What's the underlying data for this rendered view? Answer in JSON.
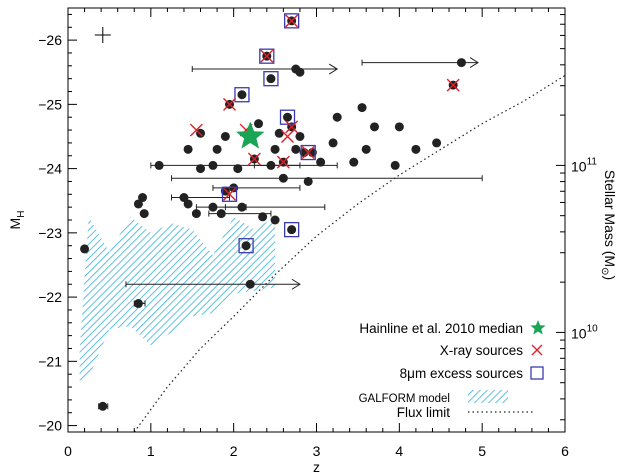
{
  "chart_data": {
    "type": "scatter",
    "title": "",
    "xlabel": "z",
    "ylabel": "M",
    "ylabel_sub": "H",
    "y2label": "Stellar Mass (M",
    "y2label_symbol": "⊙",
    "y2label_end": ")",
    "xlim": [
      0,
      6
    ],
    "ylim": [
      -19.9,
      -26.5
    ],
    "x_ticks": [
      0,
      1,
      2,
      3,
      4,
      5,
      6
    ],
    "x_tick_labels": [
      "0",
      "1",
      "2",
      "3",
      "4",
      "5",
      "6"
    ],
    "y_ticks": [
      -20,
      -21,
      -22,
      -23,
      -24,
      -25,
      -26
    ],
    "y_tick_labels": [
      "−20",
      "−21",
      "−22",
      "−23",
      "−24",
      "−25",
      "−26"
    ],
    "y2_ticks": [
      {
        "mag": -24.05,
        "base": "10",
        "exp": "11"
      },
      {
        "mag": -21.45,
        "base": "10",
        "exp": "10"
      }
    ],
    "grid": false,
    "legend_position": "bottom-right",
    "colors": {
      "points": "#222222",
      "xray": "#e01f28",
      "excess": "#3b3bb0",
      "median": "#1aa456",
      "galform": "#33b2d6",
      "flux": "#222222"
    },
    "error_bar_sample": {
      "x": 0.42,
      "y": -26.08
    },
    "galform_model": {
      "upper": [
        [
          0.14,
          -21.15
        ],
        [
          0.25,
          -23.25
        ],
        [
          0.5,
          -22.7
        ],
        [
          0.75,
          -23.25
        ],
        [
          1.0,
          -23.0
        ],
        [
          1.25,
          -23.15
        ],
        [
          1.5,
          -23.05
        ],
        [
          1.75,
          -22.65
        ],
        [
          2.0,
          -23.25
        ],
        [
          2.25,
          -23.05
        ],
        [
          2.5,
          -23.25
        ]
      ],
      "lower": [
        [
          2.5,
          -22.15
        ],
        [
          2.25,
          -22.1
        ],
        [
          2.0,
          -22.05
        ],
        [
          1.75,
          -21.75
        ],
        [
          1.5,
          -21.7
        ],
        [
          1.25,
          -21.45
        ],
        [
          1.0,
          -21.25
        ],
        [
          0.75,
          -21.55
        ],
        [
          0.5,
          -21.5
        ],
        [
          0.25,
          -20.75
        ],
        [
          0.14,
          -20.7
        ]
      ]
    },
    "flux_limit": [
      [
        0.8,
        -19.9
      ],
      [
        1.2,
        -20.6
      ],
      [
        1.6,
        -21.2
      ],
      [
        2.0,
        -21.7
      ],
      [
        2.5,
        -22.35
      ],
      [
        3.0,
        -22.95
      ],
      [
        3.5,
        -23.45
      ],
      [
        4.0,
        -23.9
      ],
      [
        4.5,
        -24.3
      ],
      [
        5.0,
        -24.7
      ],
      [
        5.5,
        -25.05
      ],
      [
        6.0,
        -25.45
      ]
    ],
    "median": {
      "x": 2.2,
      "y": -24.5
    },
    "points": [
      {
        "x": 0.2,
        "y": -22.75
      },
      {
        "x": 0.42,
        "y": -20.3,
        "xerr": [
          0.05,
          0.06
        ]
      },
      {
        "x": 0.85,
        "y": -21.9,
        "xerr": [
          0.05,
          0.08
        ]
      },
      {
        "x": 0.85,
        "y": -23.45
      },
      {
        "x": 0.9,
        "y": -23.55
      },
      {
        "x": 0.92,
        "y": -23.3
      },
      {
        "x": 1.1,
        "y": -24.05,
        "xerr": [
          0.1,
          1.7
        ]
      },
      {
        "x": 1.4,
        "y": -23.55,
        "xerr": [
          0.15,
          0.55
        ]
      },
      {
        "x": 1.45,
        "y": -23.45
      },
      {
        "x": 1.45,
        "y": -24.3
      },
      {
        "x": 1.55,
        "y": -23.3
      },
      {
        "x": 1.6,
        "y": -24.0
      },
      {
        "x": 1.6,
        "y": -24.55
      },
      {
        "x": 1.75,
        "y": -23.4,
        "xerr": [
          0.2,
          0.4
        ]
      },
      {
        "x": 1.75,
        "y": -24.05
      },
      {
        "x": 1.8,
        "y": -24.3
      },
      {
        "x": 1.85,
        "y": -23.3,
        "xerr": [
          0.15,
          0.6
        ]
      },
      {
        "x": 1.9,
        "y": -23.65
      },
      {
        "x": 1.9,
        "y": -24.5
      },
      {
        "x": 1.95,
        "y": -25.0
      },
      {
        "x": 2.0,
        "y": -23.7,
        "xerr": [
          0.25,
          0.8
        ]
      },
      {
        "x": 2.05,
        "y": -24.0
      },
      {
        "x": 2.1,
        "y": -25.15
      },
      {
        "x": 2.1,
        "y": -23.4,
        "xerr": [
          0.2,
          1.0
        ]
      },
      {
        "x": 2.15,
        "y": -22.8
      },
      {
        "x": 2.2,
        "y": -22.2,
        "xerr": [
          1.5,
          0.6
        ],
        "arrow": true
      },
      {
        "x": 2.25,
        "y": -24.15
      },
      {
        "x": 2.3,
        "y": -24.7
      },
      {
        "x": 2.35,
        "y": -23.25
      },
      {
        "x": 2.4,
        "y": -25.75
      },
      {
        "x": 2.45,
        "y": -24.05,
        "xerr": [
          0.2,
          0.8
        ]
      },
      {
        "x": 2.45,
        "y": -25.4
      },
      {
        "x": 2.5,
        "y": -23.2
      },
      {
        "x": 2.5,
        "y": -24.3
      },
      {
        "x": 2.55,
        "y": -24.55
      },
      {
        "x": 2.6,
        "y": -23.85,
        "xerr": [
          1.35,
          2.4
        ]
      },
      {
        "x": 2.6,
        "y": -24.1
      },
      {
        "x": 2.65,
        "y": -24.8
      },
      {
        "x": 2.7,
        "y": -23.05
      },
      {
        "x": 2.7,
        "y": -24.65
      },
      {
        "x": 2.7,
        "y": -26.3
      },
      {
        "x": 2.75,
        "y": -24.3
      },
      {
        "x": 2.75,
        "y": -25.55,
        "xerr": [
          1.25,
          0.5
        ],
        "arrow": true
      },
      {
        "x": 2.8,
        "y": -24.5
      },
      {
        "x": 2.8,
        "y": -25.5
      },
      {
        "x": 2.85,
        "y": -24.25
      },
      {
        "x": 2.9,
        "y": -23.8
      },
      {
        "x": 2.95,
        "y": -24.25
      },
      {
        "x": 3.05,
        "y": -24.1
      },
      {
        "x": 3.2,
        "y": -24.4
      },
      {
        "x": 3.25,
        "y": -24.8
      },
      {
        "x": 3.45,
        "y": -24.1
      },
      {
        "x": 3.55,
        "y": -24.95
      },
      {
        "x": 3.6,
        "y": -24.3
      },
      {
        "x": 3.7,
        "y": -24.65
      },
      {
        "x": 3.95,
        "y": -24.05
      },
      {
        "x": 4.0,
        "y": -24.65
      },
      {
        "x": 4.2,
        "y": -24.3
      },
      {
        "x": 4.45,
        "y": -24.4
      },
      {
        "x": 4.65,
        "y": -25.3
      },
      {
        "x": 4.75,
        "y": -25.65,
        "xerr": [
          1.2,
          0.2
        ],
        "arrow": true
      }
    ],
    "xray": [
      {
        "x": 1.55,
        "y": -24.6
      },
      {
        "x": 1.95,
        "y": -23.6
      },
      {
        "x": 1.95,
        "y": -25.0
      },
      {
        "x": 2.15,
        "y": -24.6
      },
      {
        "x": 2.25,
        "y": -24.15
      },
      {
        "x": 2.4,
        "y": -25.75
      },
      {
        "x": 2.6,
        "y": -24.1
      },
      {
        "x": 2.65,
        "y": -24.5
      },
      {
        "x": 2.7,
        "y": -24.65
      },
      {
        "x": 2.7,
        "y": -26.3
      },
      {
        "x": 2.9,
        "y": -24.25
      },
      {
        "x": 4.65,
        "y": -25.3
      }
    ],
    "excess": [
      {
        "x": 1.95,
        "y": -23.6
      },
      {
        "x": 2.1,
        "y": -25.15
      },
      {
        "x": 2.15,
        "y": -22.8
      },
      {
        "x": 2.4,
        "y": -25.75
      },
      {
        "x": 2.45,
        "y": -25.4
      },
      {
        "x": 2.65,
        "y": -24.8
      },
      {
        "x": 2.7,
        "y": -23.05
      },
      {
        "x": 2.7,
        "y": -26.3
      },
      {
        "x": 2.9,
        "y": -24.25
      }
    ],
    "legend": [
      {
        "key": "median",
        "label": "Hainline et al. 2010 median"
      },
      {
        "key": "xray",
        "label": "X-ray sources"
      },
      {
        "key": "excess",
        "label": "8μm excess sources"
      },
      {
        "key": "galform",
        "label": "GALFORM model"
      },
      {
        "key": "flux",
        "label": "Flux limit"
      }
    ]
  }
}
